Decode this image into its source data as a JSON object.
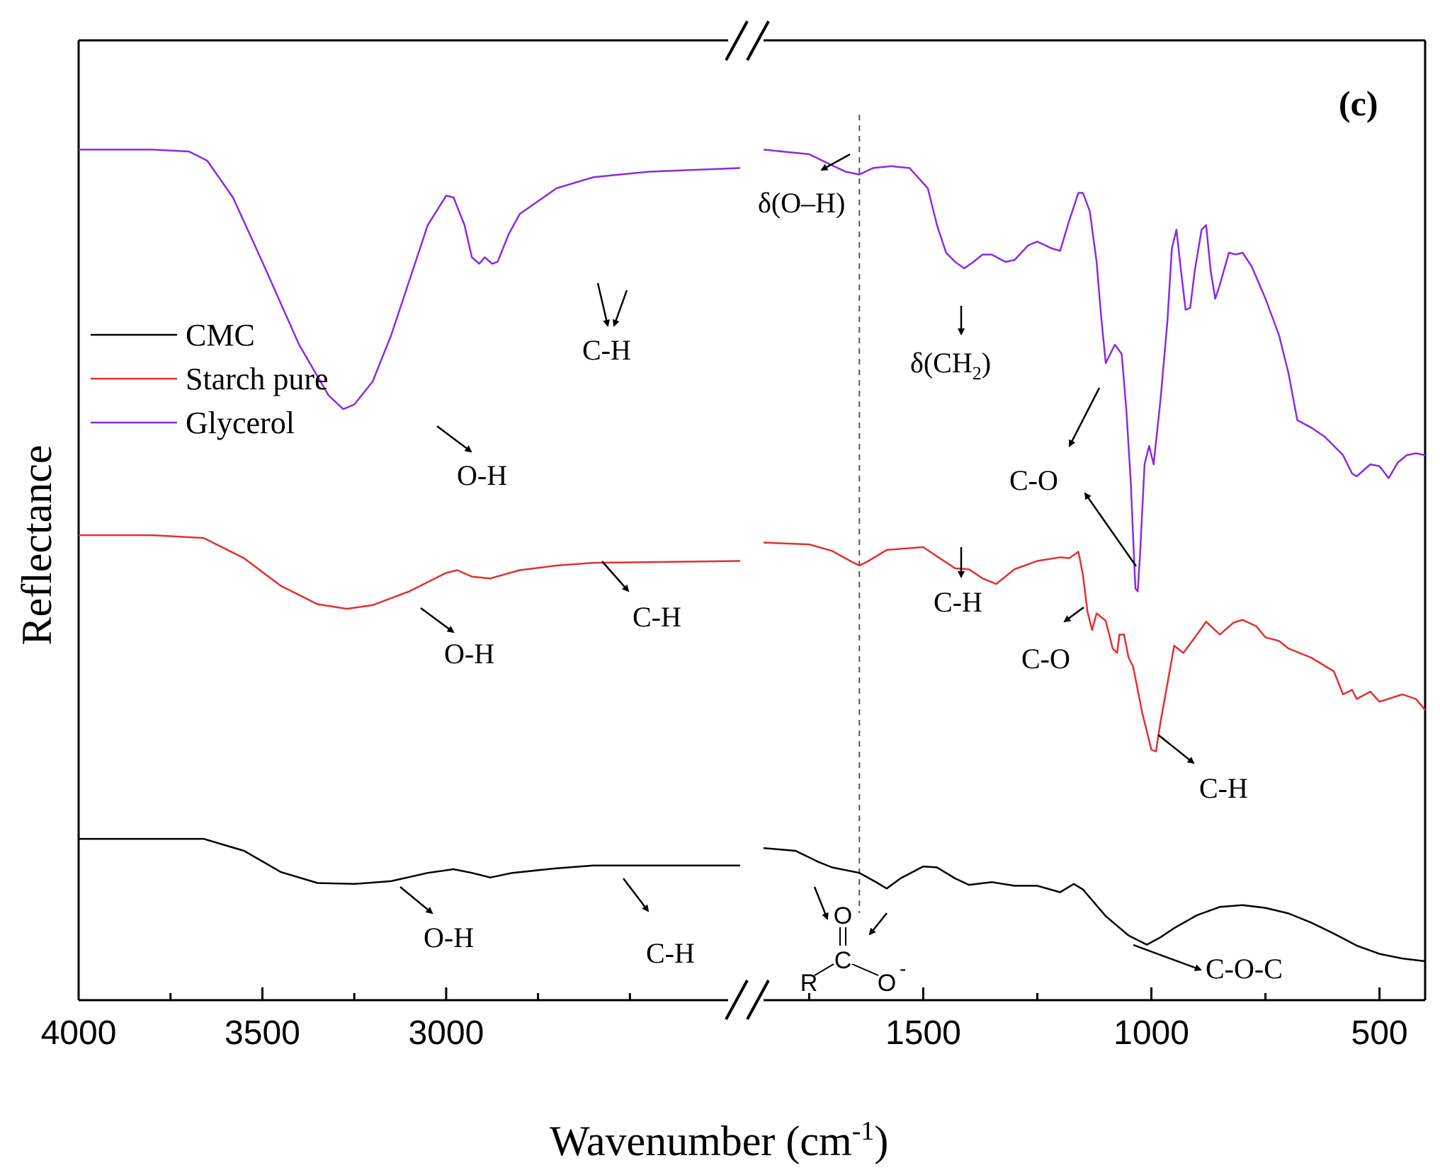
{
  "chart_data": {
    "type": "line",
    "panel_label": "(c)",
    "xlabel": "Wavenumber (cm",
    "xlabel_superscript": "-1",
    "xlabel_close": ")",
    "ylabel": "Reflectance",
    "x_axis": {
      "reversed": true,
      "segments": [
        [
          4000,
          2200
        ],
        [
          1850,
          400
        ]
      ],
      "ticks": [
        {
          "value": 4000,
          "label": "4000"
        },
        {
          "value": 3500,
          "label": "3500"
        },
        {
          "value": 3000,
          "label": "3000"
        },
        {
          "value": 1500,
          "label": "1500"
        },
        {
          "value": 1000,
          "label": "1000"
        },
        {
          "value": 500,
          "label": "500"
        }
      ],
      "minor_ticks": [
        3750,
        3250,
        2750,
        2500,
        1750,
        1250,
        750
      ]
    },
    "ylim": [
      0,
      1
    ],
    "reference_line_x": 1640,
    "legend": {
      "position": "upper-left",
      "entries": [
        {
          "name": "CMC",
          "color": "#000000"
        },
        {
          "name": "Starch pure",
          "color": "#e03030"
        },
        {
          "name": "Glycerol",
          "color": "#8a2be2"
        }
      ]
    },
    "series": [
      {
        "name": "CMC",
        "color": "#000000",
        "points": [
          [
            4000,
            0.173
          ],
          [
            3800,
            0.173
          ],
          [
            3660,
            0.173
          ],
          [
            3550,
            0.16
          ],
          [
            3450,
            0.137
          ],
          [
            3350,
            0.125
          ],
          [
            3250,
            0.124
          ],
          [
            3150,
            0.127
          ],
          [
            3050,
            0.136
          ],
          [
            2980,
            0.14
          ],
          [
            2930,
            0.136
          ],
          [
            2880,
            0.131
          ],
          [
            2820,
            0.136
          ],
          [
            2700,
            0.141
          ],
          [
            2600,
            0.144
          ],
          [
            2200,
            0.144
          ],
          [
            1850,
            0.163
          ],
          [
            1780,
            0.16
          ],
          [
            1730,
            0.148
          ],
          [
            1700,
            0.142
          ],
          [
            1640,
            0.136
          ],
          [
            1600,
            0.125
          ],
          [
            1580,
            0.119
          ],
          [
            1550,
            0.13
          ],
          [
            1500,
            0.143
          ],
          [
            1470,
            0.142
          ],
          [
            1430,
            0.13
          ],
          [
            1400,
            0.123
          ],
          [
            1350,
            0.126
          ],
          [
            1300,
            0.122
          ],
          [
            1250,
            0.122
          ],
          [
            1200,
            0.115
          ],
          [
            1170,
            0.124
          ],
          [
            1150,
            0.118
          ],
          [
            1100,
            0.089
          ],
          [
            1050,
            0.068
          ],
          [
            1010,
            0.058
          ],
          [
            980,
            0.066
          ],
          [
            950,
            0.076
          ],
          [
            900,
            0.09
          ],
          [
            850,
            0.099
          ],
          [
            800,
            0.101
          ],
          [
            750,
            0.098
          ],
          [
            700,
            0.092
          ],
          [
            650,
            0.082
          ],
          [
            600,
            0.07
          ],
          [
            550,
            0.057
          ],
          [
            500,
            0.048
          ],
          [
            450,
            0.043
          ],
          [
            400,
            0.04
          ]
        ]
      },
      {
        "name": "Starch pure",
        "color": "#e03030",
        "points": [
          [
            4000,
            0.503
          ],
          [
            3800,
            0.503
          ],
          [
            3660,
            0.5
          ],
          [
            3550,
            0.478
          ],
          [
            3450,
            0.448
          ],
          [
            3350,
            0.428
          ],
          [
            3270,
            0.423
          ],
          [
            3200,
            0.427
          ],
          [
            3100,
            0.442
          ],
          [
            3000,
            0.462
          ],
          [
            2970,
            0.465
          ],
          [
            2930,
            0.458
          ],
          [
            2880,
            0.456
          ],
          [
            2800,
            0.465
          ],
          [
            2700,
            0.47
          ],
          [
            2600,
            0.473
          ],
          [
            2200,
            0.475
          ],
          [
            1850,
            0.495
          ],
          [
            1750,
            0.493
          ],
          [
            1700,
            0.486
          ],
          [
            1660,
            0.475
          ],
          [
            1640,
            0.47
          ],
          [
            1620,
            0.475
          ],
          [
            1580,
            0.487
          ],
          [
            1500,
            0.49
          ],
          [
            1470,
            0.48
          ],
          [
            1430,
            0.467
          ],
          [
            1400,
            0.466
          ],
          [
            1370,
            0.456
          ],
          [
            1340,
            0.45
          ],
          [
            1300,
            0.466
          ],
          [
            1250,
            0.475
          ],
          [
            1200,
            0.479
          ],
          [
            1180,
            0.478
          ],
          [
            1160,
            0.485
          ],
          [
            1150,
            0.46
          ],
          [
            1140,
            0.42
          ],
          [
            1130,
            0.4
          ],
          [
            1120,
            0.418
          ],
          [
            1100,
            0.41
          ],
          [
            1085,
            0.38
          ],
          [
            1075,
            0.375
          ],
          [
            1070,
            0.395
          ],
          [
            1060,
            0.395
          ],
          [
            1050,
            0.37
          ],
          [
            1040,
            0.36
          ],
          [
            1020,
            0.31
          ],
          [
            1000,
            0.27
          ],
          [
            990,
            0.268
          ],
          [
            980,
            0.3
          ],
          [
            960,
            0.355
          ],
          [
            950,
            0.383
          ],
          [
            930,
            0.375
          ],
          [
            900,
            0.395
          ],
          [
            880,
            0.409
          ],
          [
            850,
            0.395
          ],
          [
            820,
            0.408
          ],
          [
            800,
            0.411
          ],
          [
            770,
            0.404
          ],
          [
            750,
            0.392
          ],
          [
            720,
            0.388
          ],
          [
            700,
            0.38
          ],
          [
            650,
            0.37
          ],
          [
            600,
            0.355
          ],
          [
            580,
            0.33
          ],
          [
            560,
            0.335
          ],
          [
            550,
            0.325
          ],
          [
            520,
            0.333
          ],
          [
            500,
            0.322
          ],
          [
            450,
            0.33
          ],
          [
            420,
            0.325
          ],
          [
            400,
            0.313
          ]
        ]
      },
      {
        "name": "Glycerol",
        "color": "#8a2be2",
        "points": [
          [
            4000,
            0.922
          ],
          [
            3800,
            0.922
          ],
          [
            3700,
            0.92
          ],
          [
            3650,
            0.91
          ],
          [
            3580,
            0.87
          ],
          [
            3500,
            0.8
          ],
          [
            3400,
            0.71
          ],
          [
            3320,
            0.655
          ],
          [
            3280,
            0.64
          ],
          [
            3250,
            0.645
          ],
          [
            3200,
            0.67
          ],
          [
            3150,
            0.72
          ],
          [
            3100,
            0.78
          ],
          [
            3050,
            0.84
          ],
          [
            3000,
            0.872
          ],
          [
            2980,
            0.87
          ],
          [
            2950,
            0.84
          ],
          [
            2930,
            0.805
          ],
          [
            2910,
            0.798
          ],
          [
            2895,
            0.805
          ],
          [
            2875,
            0.798
          ],
          [
            2860,
            0.8
          ],
          [
            2830,
            0.83
          ],
          [
            2800,
            0.852
          ],
          [
            2700,
            0.88
          ],
          [
            2600,
            0.892
          ],
          [
            2450,
            0.898
          ],
          [
            2200,
            0.902
          ],
          [
            1850,
            0.922
          ],
          [
            1750,
            0.917
          ],
          [
            1700,
            0.905
          ],
          [
            1670,
            0.898
          ],
          [
            1640,
            0.895
          ],
          [
            1610,
            0.902
          ],
          [
            1570,
            0.904
          ],
          [
            1530,
            0.902
          ],
          [
            1490,
            0.88
          ],
          [
            1470,
            0.84
          ],
          [
            1450,
            0.81
          ],
          [
            1430,
            0.8
          ],
          [
            1410,
            0.793
          ],
          [
            1390,
            0.8
          ],
          [
            1370,
            0.808
          ],
          [
            1350,
            0.808
          ],
          [
            1320,
            0.8
          ],
          [
            1300,
            0.802
          ],
          [
            1270,
            0.818
          ],
          [
            1250,
            0.822
          ],
          [
            1220,
            0.815
          ],
          [
            1200,
            0.812
          ],
          [
            1180,
            0.845
          ],
          [
            1160,
            0.875
          ],
          [
            1150,
            0.875
          ],
          [
            1135,
            0.855
          ],
          [
            1120,
            0.8
          ],
          [
            1110,
            0.74
          ],
          [
            1100,
            0.69
          ],
          [
            1090,
            0.7
          ],
          [
            1080,
            0.71
          ],
          [
            1065,
            0.7
          ],
          [
            1055,
            0.64
          ],
          [
            1045,
            0.56
          ],
          [
            1040,
            0.5
          ],
          [
            1035,
            0.445
          ],
          [
            1030,
            0.442
          ],
          [
            1025,
            0.48
          ],
          [
            1015,
            0.58
          ],
          [
            1005,
            0.6
          ],
          [
            995,
            0.58
          ],
          [
            980,
            0.65
          ],
          [
            965,
            0.735
          ],
          [
            955,
            0.815
          ],
          [
            945,
            0.835
          ],
          [
            935,
            0.79
          ],
          [
            925,
            0.748
          ],
          [
            915,
            0.75
          ],
          [
            905,
            0.79
          ],
          [
            890,
            0.835
          ],
          [
            880,
            0.84
          ],
          [
            870,
            0.79
          ],
          [
            860,
            0.76
          ],
          [
            850,
            0.775
          ],
          [
            830,
            0.81
          ],
          [
            815,
            0.808
          ],
          [
            800,
            0.81
          ],
          [
            780,
            0.795
          ],
          [
            750,
            0.76
          ],
          [
            720,
            0.72
          ],
          [
            700,
            0.68
          ],
          [
            680,
            0.628
          ],
          [
            650,
            0.62
          ],
          [
            620,
            0.61
          ],
          [
            600,
            0.6
          ],
          [
            580,
            0.59
          ],
          [
            560,
            0.57
          ],
          [
            550,
            0.567
          ],
          [
            520,
            0.58
          ],
          [
            500,
            0.578
          ],
          [
            480,
            0.565
          ],
          [
            460,
            0.582
          ],
          [
            440,
            0.59
          ],
          [
            420,
            0.592
          ],
          [
            400,
            0.59
          ]
        ]
      }
    ],
    "annotations": {
      "glycerol": {
        "oh": "O-H",
        "ch": "C-H",
        "doh": "δ(O–H)",
        "dch2_prefix": "δ(CH",
        "dch2_sub": "2",
        "dch2_suffix": ")",
        "co": "C-O"
      },
      "starch": {
        "oh": "O-H",
        "ch1": "C-H",
        "ch2": "C-H",
        "co": "C-O",
        "ch3": "C-H"
      },
      "cmc": {
        "oh": "O-H",
        "ch": "C-H",
        "coc": "C-O-C",
        "carboxylate_o": "O",
        "carboxylate_c": "C",
        "carboxylate_r": "R",
        "carboxylate_ominus": "O",
        "carboxylate_charge": "-"
      }
    }
  }
}
